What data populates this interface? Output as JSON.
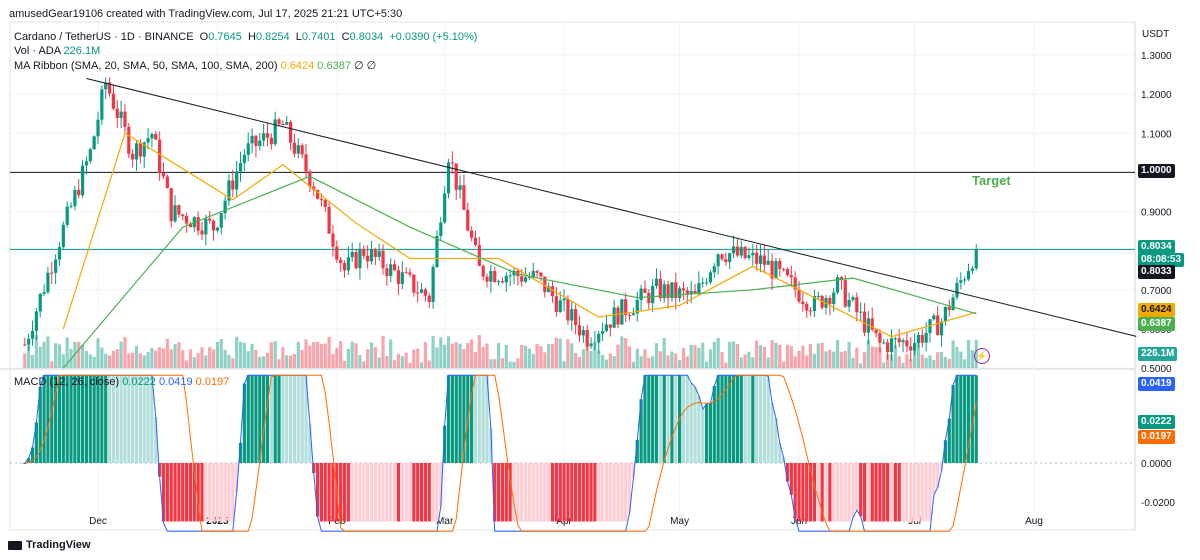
{
  "header": {
    "credit": "amusedGear19106 created with TradingView.com, Jul 17, 2025 21:21 UTC+5:30",
    "symbol": "Cardano / TetherUS · 1D · BINANCE",
    "open_label": "O",
    "open": "0.7645",
    "high_label": "H",
    "high": "0.8254",
    "low_label": "L",
    "low": "0.7401",
    "close_label": "C",
    "close": "0.8034",
    "change": "+0.0390 (+5.10%)",
    "vol_label": "Vol · ADA",
    "vol_value": "226.1M",
    "ma_label": "MA Ribbon (SMA, 20, SMA, 50, SMA, 100, SMA, 200)",
    "ma_values": [
      "0.6424",
      "0.6387",
      "∅",
      "∅"
    ],
    "macd_label": "MACD (12, 26, close)",
    "macd_values": [
      "0.0222",
      "0.0419",
      "0.0197"
    ],
    "currency": "USDT",
    "footer": "TradingView"
  },
  "annotation": {
    "target": "Target"
  },
  "badges": {
    "price": "0.8034",
    "countdown": "08:08:53",
    "line": "0.8033",
    "ma1": "0.6424",
    "ma2": "0.6387",
    "volume": "226.1M",
    "macd_signal": "0.0419",
    "macd_line": "0.0222",
    "macd_hist": "0.0197",
    "target_line": "1.0000"
  },
  "colors": {
    "up": "#089981",
    "down": "#f23645",
    "ma20": "#f2a900",
    "ma50": "#4caf50",
    "macd": "#2962ff",
    "signal": "#ff6d00"
  },
  "chart_data": [
    {
      "type": "candlestick",
      "title": "Cardano / TetherUS · 1D · BINANCE",
      "ylim": [
        0.5,
        1.33
      ],
      "y_ticks": [
        "1.3000",
        "1.2000",
        "1.1000",
        "1.0000",
        "0.9000",
        "0.8000",
        "0.7000",
        "0.6000",
        "0.5000"
      ],
      "x_ticks": [
        "Dec",
        "2025",
        "Feb",
        "Mar",
        "Apr",
        "May",
        "Jun",
        "Jul",
        "Aug"
      ],
      "keypoints": [
        {
          "date": "2024-11-12",
          "price": 0.56
        },
        {
          "date": "2024-11-20",
          "price": 0.8
        },
        {
          "date": "2024-11-29",
          "price": 1.05
        },
        {
          "date": "2024-12-03",
          "price": 1.23
        },
        {
          "date": "2024-12-10",
          "price": 1.05
        },
        {
          "date": "2024-12-15",
          "price": 1.1
        },
        {
          "date": "2024-12-20",
          "price": 0.9
        },
        {
          "date": "2024-12-31",
          "price": 0.86
        },
        {
          "date": "2025-01-08",
          "price": 1.05
        },
        {
          "date": "2025-01-18",
          "price": 1.12
        },
        {
          "date": "2025-01-26",
          "price": 0.97
        },
        {
          "date": "2025-02-03",
          "price": 0.75
        },
        {
          "date": "2025-02-08",
          "price": 0.8
        },
        {
          "date": "2025-02-25",
          "price": 0.68
        },
        {
          "date": "2025-03-02",
          "price": 1.05
        },
        {
          "date": "2025-03-10",
          "price": 0.75
        },
        {
          "date": "2025-03-25",
          "price": 0.73
        },
        {
          "date": "2025-04-07",
          "price": 0.58
        },
        {
          "date": "2025-04-15",
          "price": 0.64
        },
        {
          "date": "2025-04-25",
          "price": 0.7
        },
        {
          "date": "2025-05-05",
          "price": 0.68
        },
        {
          "date": "2025-05-11",
          "price": 0.8
        },
        {
          "date": "2025-05-23",
          "price": 0.77
        },
        {
          "date": "2025-06-05",
          "price": 0.66
        },
        {
          "date": "2025-06-11",
          "price": 0.71
        },
        {
          "date": "2025-06-22",
          "price": 0.56
        },
        {
          "date": "2025-07-01",
          "price": 0.57
        },
        {
          "date": "2025-07-08",
          "price": 0.62
        },
        {
          "date": "2025-07-17",
          "price": 0.8034
        }
      ],
      "ma20": [
        {
          "date": "2024-11-22",
          "value": 0.6
        },
        {
          "date": "2024-12-08",
          "value": 1.1
        },
        {
          "date": "2024-12-18",
          "value": 1.04
        },
        {
          "date": "2025-01-05",
          "value": 0.93
        },
        {
          "date": "2025-01-18",
          "value": 1.02
        },
        {
          "date": "2025-02-06",
          "value": 0.87
        },
        {
          "date": "2025-02-20",
          "value": 0.78
        },
        {
          "date": "2025-03-15",
          "value": 0.78
        },
        {
          "date": "2025-04-10",
          "value": 0.63
        },
        {
          "date": "2025-05-01",
          "value": 0.66
        },
        {
          "date": "2025-05-20",
          "value": 0.76
        },
        {
          "date": "2025-06-25",
          "value": 0.58
        },
        {
          "date": "2025-07-17",
          "value": 0.6424
        }
      ],
      "ma50": [
        {
          "date": "2024-11-22",
          "value": 0.5
        },
        {
          "date": "2024-12-23",
          "value": 0.86
        },
        {
          "date": "2025-01-25",
          "value": 0.99
        },
        {
          "date": "2025-02-20",
          "value": 0.86
        },
        {
          "date": "2025-03-20",
          "value": 0.74
        },
        {
          "date": "2025-04-20",
          "value": 0.68
        },
        {
          "date": "2025-05-20",
          "value": 0.7
        },
        {
          "date": "2025-06-15",
          "value": 0.73
        },
        {
          "date": "2025-07-17",
          "value": 0.6387
        }
      ],
      "trendline": [
        {
          "date": "2024-11-28",
          "price": 1.24
        },
        {
          "date": "2025-07-30",
          "price": 0.65
        }
      ],
      "horizontal_lines": [
        1.0,
        0.8033
      ],
      "annotations": [
        "Target"
      ]
    },
    {
      "type": "histogram",
      "title": "MACD (12, 26, close)",
      "y_ticks": [
        "0.0000",
        "-0.0200"
      ],
      "macd_line_last": 0.0222,
      "signal_last": 0.0419,
      "histogram_last": 0.0197
    }
  ]
}
